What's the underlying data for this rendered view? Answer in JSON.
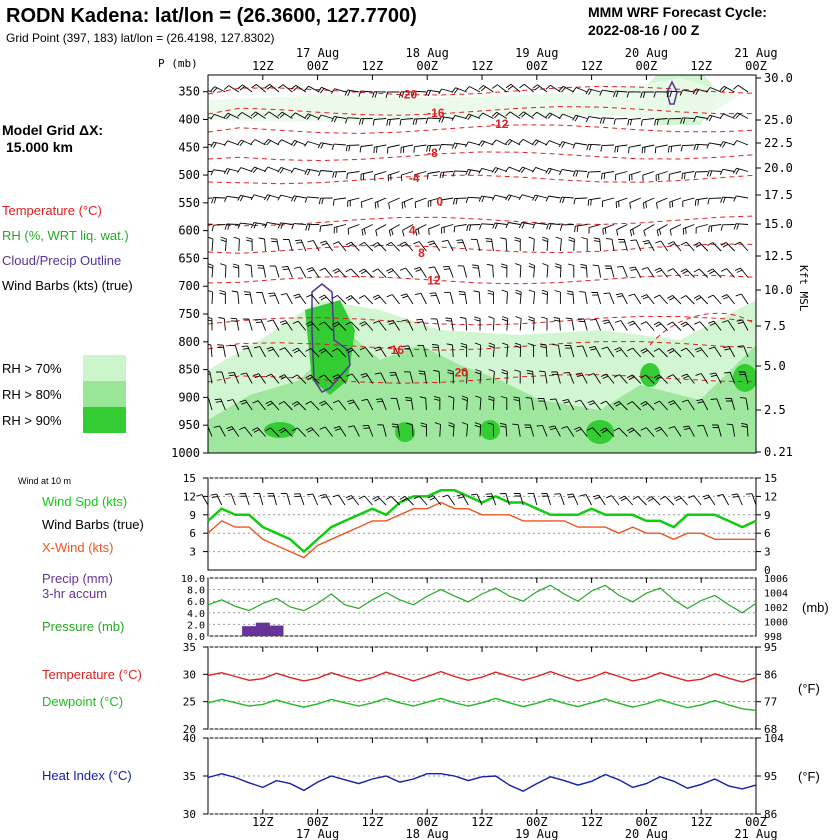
{
  "header": {
    "station_title": "RODN Kadena:  lat/lon = (26.3600, 127.7700)",
    "grid_point": "Grid Point (397, 183) lat/lon = (26.4198, 127.8302)",
    "cycle_line1": "MMM WRF Forecast Cycle:",
    "cycle_line2": "2022-08-16 / 00  Z",
    "model_grid_line1": "Model Grid ΔX:",
    "model_grid_line2": "15.000 km"
  },
  "time_axis": {
    "top_day_labels": [
      "17 Aug",
      "18 Aug",
      "19 Aug",
      "20 Aug",
      "21 Aug"
    ],
    "hour_labels": [
      "12Z",
      "00Z",
      "12Z",
      "00Z",
      "12Z",
      "00Z",
      "12Z",
      "00Z",
      "12Z",
      "00Z"
    ],
    "bottom_day_labels": [
      "17 Aug",
      "18 Aug",
      "19 Aug",
      "20 Aug",
      "21 Aug"
    ]
  },
  "legend": {
    "temperature": "Temperature (°C)",
    "rh": "RH (%, WRT liq. wat.)",
    "cloud": "Cloud/Precip Outline",
    "wind_barbs": "Wind Barbs (kts) (true)",
    "rh70": "RH > 70%",
    "rh80": "RH > 80%",
    "rh90": "RH > 90%",
    "colors": {
      "temperature": "#e02020",
      "rh": "#22aa22",
      "cloud": "#553399",
      "wind": "#000000",
      "rh70": "#ccf5cc",
      "rh80": "#99e699",
      "rh90": "#33cc33"
    }
  },
  "chart_data": [
    {
      "type": "heatmap",
      "panel": "time-height cross section",
      "p_axis_label": "P (mb)",
      "pressure_ticks": [
        350,
        400,
        450,
        500,
        550,
        600,
        650,
        700,
        750,
        800,
        850,
        900,
        950,
        1000
      ],
      "kft_ticks": [
        "30.0",
        "25.0",
        "22.5",
        "20.0",
        "17.5",
        "15.0",
        "12.5",
        "10.0",
        "7.5",
        "5.0",
        "2.5",
        "0.21"
      ],
      "kft_axis_label": "Kft MSL",
      "ylim": [
        1000,
        320
      ],
      "xlim_hours": [
        0,
        120
      ],
      "temperature_contour_labels": [
        {
          "label": "-20",
          "hour": 42,
          "p": 355
        },
        {
          "label": "-16",
          "hour": 48,
          "p": 388
        },
        {
          "label": "-12",
          "hour": 62,
          "p": 408
        },
        {
          "label": "-8",
          "hour": 48,
          "p": 460
        },
        {
          "label": "-4",
          "hour": 44,
          "p": 505
        },
        {
          "label": "0",
          "hour": 50,
          "p": 548
        },
        {
          "label": "4",
          "hour": 44,
          "p": 600
        },
        {
          "label": "8",
          "hour": 46,
          "p": 640
        },
        {
          "label": "12",
          "hour": 48,
          "p": 690
        },
        {
          "label": "16",
          "hour": 40,
          "p": 815
        },
        {
          "label": "20",
          "hour": 54,
          "p": 855
        }
      ]
    },
    {
      "type": "line",
      "panel": "10 m wind",
      "panel_label": "Wind at 10 m",
      "ylim": [
        0,
        15
      ],
      "left_ticks": [
        "15",
        "12",
        "9",
        "6",
        "3"
      ],
      "right_ticks": [
        "15",
        "12",
        "9",
        "6",
        "3",
        "0"
      ],
      "hours": [
        0,
        3,
        6,
        9,
        12,
        15,
        18,
        21,
        24,
        27,
        30,
        33,
        36,
        39,
        42,
        45,
        48,
        51,
        54,
        57,
        60,
        63,
        66,
        69,
        72,
        75,
        78,
        81,
        84,
        87,
        90,
        93,
        96,
        99,
        102,
        105,
        108,
        111,
        114,
        117,
        120
      ],
      "series": [
        {
          "name": "Wind Spd (kts)",
          "color": "#11cc11",
          "values": [
            8,
            10,
            9,
            9,
            7,
            6,
            5,
            3,
            5,
            7,
            8,
            9,
            10,
            9,
            11,
            12,
            12,
            13,
            13,
            12,
            11,
            12,
            11,
            11,
            10,
            9,
            9,
            9,
            10,
            9,
            9,
            9,
            8,
            8,
            7,
            9,
            9,
            9,
            8,
            7,
            8
          ]
        },
        {
          "name": "X-Wind (kts)",
          "color": "#ee5522",
          "values": [
            6,
            8,
            7,
            7,
            5,
            4,
            3,
            2,
            4,
            5,
            6,
            7,
            8,
            8,
            9,
            10,
            10,
            11,
            10,
            10,
            9,
            9,
            9,
            8,
            8,
            8,
            8,
            7,
            7,
            7,
            6,
            7,
            6,
            6,
            5,
            6,
            6,
            5,
            5,
            5,
            5
          ]
        }
      ],
      "wind_barbs_label": "Wind Barbs (true)"
    },
    {
      "type": "bar",
      "panel": "precip and pressure",
      "precip_label_line1": "Precip (mm)",
      "precip_label_line2": "3-hr accum",
      "pressure_label": "Pressure (mb)",
      "precip_ylim": [
        0,
        10
      ],
      "precip_ticks": [
        "10.0",
        "8.0",
        "6.0",
        "4.0",
        "2.0",
        "0.0"
      ],
      "pressure_ylim": [
        998,
        1006
      ],
      "pressure_ticks": [
        "1006",
        "1004",
        "1002",
        "1000",
        "998"
      ],
      "pressure_ylabel": "(mb)",
      "precip_bars": [
        {
          "hour": 9,
          "value": 1.7
        },
        {
          "hour": 12,
          "value": 2.3
        },
        {
          "hour": 15,
          "value": 1.8
        }
      ],
      "pressure_hours": [
        0,
        3,
        6,
        9,
        12,
        15,
        18,
        21,
        24,
        27,
        30,
        33,
        36,
        39,
        42,
        45,
        48,
        51,
        54,
        57,
        60,
        63,
        66,
        69,
        72,
        75,
        78,
        81,
        84,
        87,
        90,
        93,
        96,
        99,
        102,
        105,
        108,
        111,
        114,
        117,
        120
      ],
      "pressure_values": [
        1002.3,
        1003.0,
        1002.1,
        1001.5,
        1002.5,
        1003.2,
        1002.0,
        1001.5,
        1002.5,
        1003.8,
        1002.3,
        1001.8,
        1003.0,
        1004.0,
        1003.0,
        1002.3,
        1003.5,
        1004.4,
        1003.5,
        1002.7,
        1003.8,
        1004.6,
        1003.5,
        1002.8,
        1004.1,
        1005.0,
        1003.8,
        1002.8,
        1004.2,
        1005.0,
        1003.6,
        1002.7,
        1003.9,
        1004.6,
        1003.0,
        1001.8,
        1002.9,
        1003.6,
        1002.3,
        1001.2,
        1002.5
      ]
    },
    {
      "type": "line",
      "panel": "temperature and dewpoint",
      "ylim": [
        20,
        35
      ],
      "left_ticks": [
        "35",
        "30",
        "25",
        "20"
      ],
      "right_ticks": [
        "95",
        "86",
        "77",
        "68"
      ],
      "right_label": "(°F)",
      "hours": [
        0,
        3,
        6,
        9,
        12,
        15,
        18,
        21,
        24,
        27,
        30,
        33,
        36,
        39,
        42,
        45,
        48,
        51,
        54,
        57,
        60,
        63,
        66,
        69,
        72,
        75,
        78,
        81,
        84,
        87,
        90,
        93,
        96,
        99,
        102,
        105,
        108,
        111,
        114,
        117,
        120
      ],
      "series": [
        {
          "name": "Temperature (°C)",
          "color": "#dd2222",
          "values": [
            29.8,
            30.3,
            29.6,
            28.9,
            29.2,
            30.2,
            29.4,
            28.8,
            29.3,
            30.3,
            29.5,
            28.8,
            29.4,
            30.4,
            29.6,
            28.8,
            29.6,
            30.5,
            29.6,
            28.9,
            29.5,
            30.4,
            29.6,
            28.9,
            29.6,
            30.5,
            29.6,
            28.8,
            29.4,
            30.4,
            29.6,
            28.8,
            29.3,
            30.3,
            29.5,
            28.8,
            29.1,
            30.1,
            29.3,
            28.6,
            29.4
          ]
        },
        {
          "name": "Dewpoint (°C)",
          "color": "#22bb22",
          "values": [
            24.8,
            25.4,
            24.8,
            24.2,
            24.5,
            25.3,
            24.6,
            24.0,
            24.6,
            25.4,
            24.8,
            24.2,
            24.8,
            25.6,
            24.8,
            24.2,
            24.9,
            25.6,
            24.8,
            24.2,
            24.8,
            25.6,
            24.8,
            24.1,
            24.7,
            25.5,
            24.7,
            24.1,
            24.8,
            25.5,
            24.7,
            24.0,
            24.6,
            25.4,
            24.6,
            23.9,
            24.4,
            25.2,
            24.4,
            23.7,
            23.4
          ]
        }
      ]
    },
    {
      "type": "line",
      "panel": "heat index",
      "ylim": [
        30,
        40
      ],
      "left_ticks": [
        "40",
        "35",
        "30"
      ],
      "right_ticks": [
        "104",
        "95",
        "86"
      ],
      "right_label": "(°F)",
      "hours": [
        0,
        3,
        6,
        9,
        12,
        15,
        18,
        21,
        24,
        27,
        30,
        33,
        36,
        39,
        42,
        45,
        48,
        51,
        54,
        57,
        60,
        63,
        66,
        69,
        72,
        75,
        78,
        81,
        84,
        87,
        90,
        93,
        96,
        99,
        102,
        105,
        108,
        111,
        114,
        117,
        120
      ],
      "series": [
        {
          "name": "Heat Index (°C)",
          "color": "#1122aa",
          "values": [
            34.8,
            35.3,
            34.8,
            34.1,
            33.5,
            34.4,
            34.0,
            33.1,
            34.2,
            35.0,
            34.5,
            34.0,
            34.6,
            35.0,
            34.2,
            34.6,
            35.3,
            35.3,
            35.0,
            34.4,
            34.9,
            35.0,
            33.8,
            33.0,
            34.0,
            34.9,
            34.4,
            33.8,
            34.3,
            35.2,
            34.5,
            33.5,
            34.0,
            34.9,
            34.3,
            33.4,
            33.9,
            34.6,
            33.7,
            33.3,
            33.8
          ]
        }
      ]
    }
  ]
}
